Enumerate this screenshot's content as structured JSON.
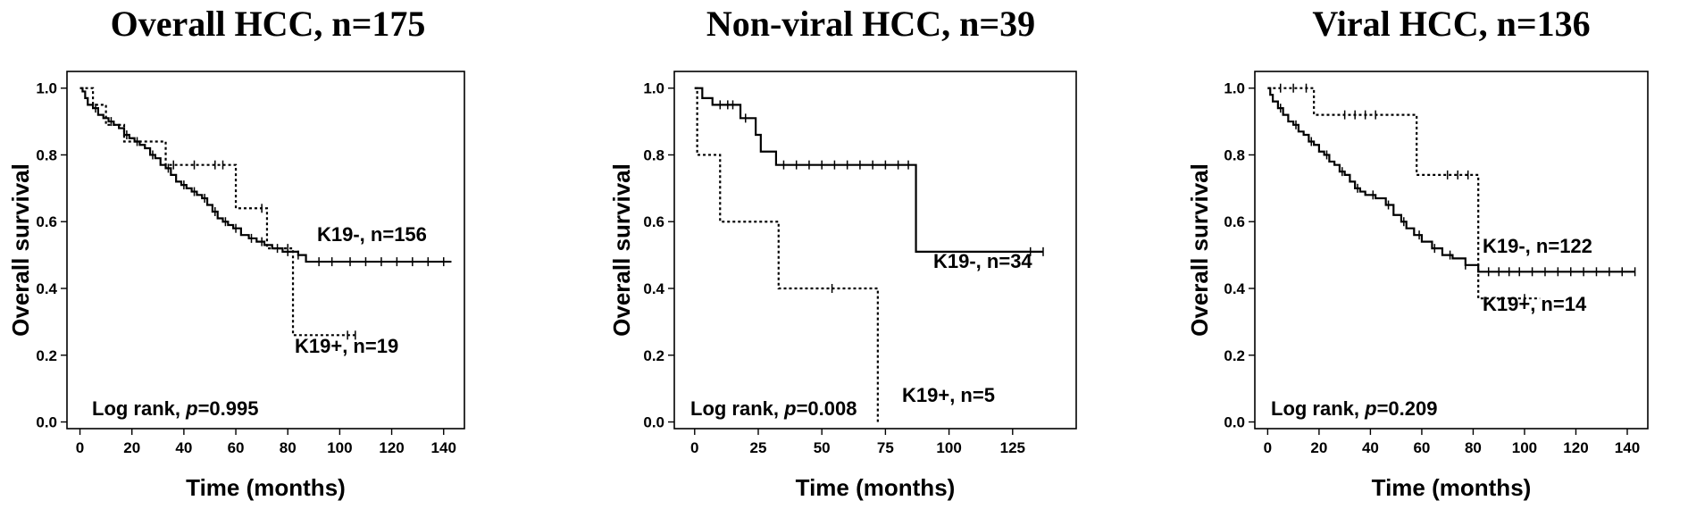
{
  "chart_data": [
    {
      "type": "line",
      "title": "Overall HCC, n=175",
      "xlabel": "Time (months)",
      "ylabel": "Overall survival",
      "xlim": [
        -5,
        148
      ],
      "ylim": [
        -0.02,
        1.05
      ],
      "xticks": [
        0,
        20,
        40,
        60,
        80,
        100,
        120,
        140
      ],
      "yticks": [
        "0.0",
        "0.2",
        "0.4",
        "0.6",
        "0.8",
        "1.0"
      ],
      "annotation": {
        "prefix": "Log rank, ",
        "p_symbol": "p",
        "p_value": "=0.995"
      },
      "series": [
        {
          "name": "K19-, n=156",
          "line_style": "solid",
          "points": [
            [
              0,
              1.0
            ],
            [
              1,
              0.99
            ],
            [
              2,
              0.97
            ],
            [
              3,
              0.95
            ],
            [
              5,
              0.94
            ],
            [
              7,
              0.92
            ],
            [
              9,
              0.91
            ],
            [
              11,
              0.9
            ],
            [
              13,
              0.89
            ],
            [
              15,
              0.88
            ],
            [
              17,
              0.86
            ],
            [
              19,
              0.85
            ],
            [
              21,
              0.84
            ],
            [
              23,
              0.83
            ],
            [
              25,
              0.82
            ],
            [
              27,
              0.8
            ],
            [
              29,
              0.79
            ],
            [
              31,
              0.77
            ],
            [
              33,
              0.76
            ],
            [
              35,
              0.74
            ],
            [
              37,
              0.72
            ],
            [
              39,
              0.71
            ],
            [
              41,
              0.7
            ],
            [
              43,
              0.69
            ],
            [
              45,
              0.68
            ],
            [
              47,
              0.67
            ],
            [
              49,
              0.65
            ],
            [
              51,
              0.63
            ],
            [
              53,
              0.61
            ],
            [
              55,
              0.6
            ],
            [
              57,
              0.59
            ],
            [
              59,
              0.58
            ],
            [
              62,
              0.56
            ],
            [
              65,
              0.55
            ],
            [
              68,
              0.54
            ],
            [
              71,
              0.53
            ],
            [
              74,
              0.52
            ],
            [
              78,
              0.51
            ],
            [
              84,
              0.5
            ],
            [
              87,
              0.48
            ],
            [
              143,
              0.48
            ]
          ],
          "censored_x": [
            6,
            12,
            18,
            22,
            28,
            34,
            40,
            44,
            48,
            52,
            56,
            60,
            66,
            70,
            76,
            80,
            84,
            92,
            97,
            104,
            110,
            116,
            122,
            128,
            134,
            140
          ],
          "label_position": "right-middle"
        },
        {
          "name": "K19+, n=19",
          "line_style": "dotted",
          "points": [
            [
              0,
              1.0
            ],
            [
              5,
              0.95
            ],
            [
              10,
              0.89
            ],
            [
              17,
              0.84
            ],
            [
              33,
              0.77
            ],
            [
              60,
              0.64
            ],
            [
              72,
              0.52
            ],
            [
              82,
              0.26
            ],
            [
              106,
              0.26
            ]
          ],
          "censored_x": [
            36,
            44,
            52,
            55,
            70,
            80,
            103,
            106
          ],
          "label_position": "right-lower"
        }
      ]
    },
    {
      "type": "line",
      "title": "Non-viral HCC, n=39",
      "xlabel": "Time (months)",
      "ylabel": "Overall survival",
      "xlim": [
        -8,
        150
      ],
      "ylim": [
        -0.02,
        1.05
      ],
      "xticks": [
        0,
        25,
        50,
        75,
        100,
        125
      ],
      "yticks": [
        "0.0",
        "0.2",
        "0.4",
        "0.6",
        "0.8",
        "1.0"
      ],
      "annotation": {
        "prefix": "Log rank, ",
        "p_symbol": "p",
        "p_value": "=0.008"
      },
      "series": [
        {
          "name": "K19-, n=34",
          "line_style": "solid",
          "points": [
            [
              0,
              1.0
            ],
            [
              3,
              0.97
            ],
            [
              7,
              0.95
            ],
            [
              18,
              0.91
            ],
            [
              24,
              0.86
            ],
            [
              26,
              0.81
            ],
            [
              32,
              0.77
            ],
            [
              87,
              0.51
            ],
            [
              137,
              0.51
            ]
          ],
          "censored_x": [
            10,
            13,
            15,
            20,
            35,
            40,
            45,
            50,
            55,
            60,
            65,
            70,
            75,
            80,
            84,
            132,
            137
          ],
          "label_position": "right-middle"
        },
        {
          "name": "K19+, n=5",
          "line_style": "dotted",
          "points": [
            [
              0,
              1.0
            ],
            [
              1,
              0.8
            ],
            [
              10,
              0.6
            ],
            [
              33,
              0.4
            ],
            [
              72,
              0.0
            ]
          ],
          "censored_x": [
            54
          ],
          "label_position": "bottom-right"
        }
      ]
    },
    {
      "type": "line",
      "title": "Viral HCC, n=136",
      "xlabel": "Time (months)",
      "ylabel": "Overall survival",
      "xlim": [
        -5,
        148
      ],
      "ylim": [
        -0.02,
        1.05
      ],
      "xticks": [
        0,
        20,
        40,
        60,
        80,
        100,
        120,
        140
      ],
      "yticks": [
        "0.0",
        "0.2",
        "0.4",
        "0.6",
        "0.8",
        "1.0"
      ],
      "annotation": {
        "prefix": "Log rank, ",
        "p_symbol": "p",
        "p_value": "=0.209"
      },
      "series": [
        {
          "name": "K19-, n=122",
          "line_style": "solid",
          "points": [
            [
              0,
              1.0
            ],
            [
              1,
              0.98
            ],
            [
              2,
              0.96
            ],
            [
              4,
              0.94
            ],
            [
              6,
              0.92
            ],
            [
              8,
              0.9
            ],
            [
              10,
              0.89
            ],
            [
              12,
              0.87
            ],
            [
              14,
              0.86
            ],
            [
              16,
              0.84
            ],
            [
              18,
              0.83
            ],
            [
              20,
              0.81
            ],
            [
              22,
              0.8
            ],
            [
              24,
              0.78
            ],
            [
              26,
              0.77
            ],
            [
              28,
              0.75
            ],
            [
              30,
              0.74
            ],
            [
              32,
              0.72
            ],
            [
              34,
              0.7
            ],
            [
              36,
              0.69
            ],
            [
              38,
              0.68
            ],
            [
              42,
              0.67
            ],
            [
              46,
              0.65
            ],
            [
              49,
              0.62
            ],
            [
              52,
              0.6
            ],
            [
              54,
              0.58
            ],
            [
              57,
              0.56
            ],
            [
              60,
              0.54
            ],
            [
              64,
              0.52
            ],
            [
              68,
              0.5
            ],
            [
              72,
              0.49
            ],
            [
              77,
              0.47
            ],
            [
              82,
              0.45
            ],
            [
              143,
              0.45
            ]
          ],
          "censored_x": [
            5,
            11,
            17,
            23,
            29,
            35,
            41,
            47,
            53,
            59,
            65,
            71,
            77,
            86,
            90,
            94,
            98,
            103,
            108,
            113,
            118,
            123,
            128,
            133,
            138,
            143
          ],
          "label_position": "right-middle"
        },
        {
          "name": "K19+, n=14",
          "line_style": "dotted",
          "points": [
            [
              0,
              1.0
            ],
            [
              18,
              0.92
            ],
            [
              58,
              0.74
            ],
            [
              82,
              0.37
            ],
            [
              106,
              0.37
            ]
          ],
          "censored_x": [
            5,
            10,
            15,
            30,
            34,
            38,
            42,
            70,
            74,
            78,
            100
          ],
          "label_position": "right-lower"
        }
      ]
    }
  ]
}
